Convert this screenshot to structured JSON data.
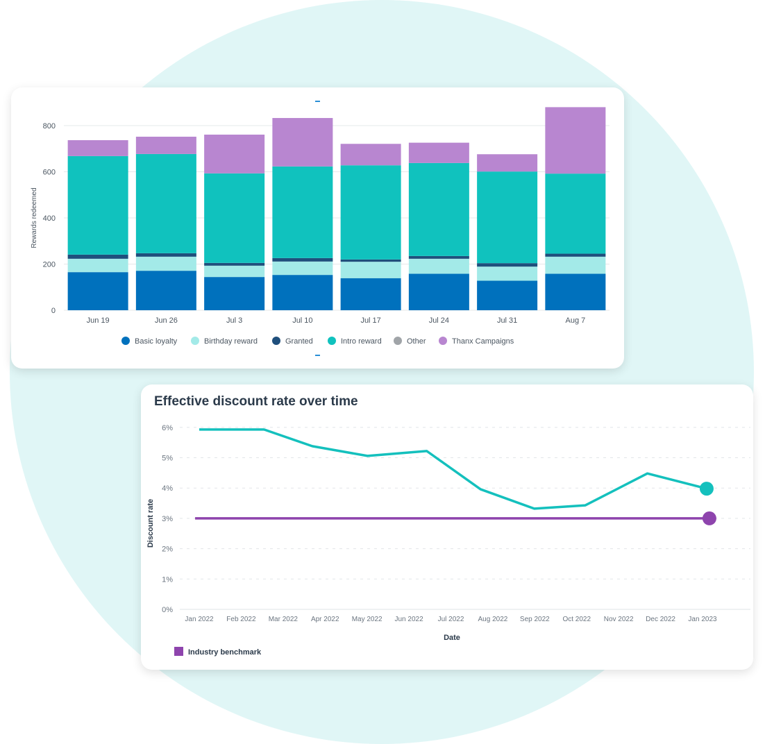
{
  "chart_data": [
    {
      "type": "bar",
      "stacked": true,
      "title": "",
      "xlabel": "",
      "ylabel": "Rewards redeemed",
      "ylim": [
        0,
        900
      ],
      "yticks": [
        0,
        200,
        400,
        600,
        800
      ],
      "grid": true,
      "legend_position": "bottom",
      "categories": [
        "Jun 19",
        "Jun 26",
        "Jul 3",
        "Jul 10",
        "Jul 17",
        "Jul 24",
        "Jul 31",
        "Aug 7"
      ],
      "series": [
        {
          "name": "Basic loyalty",
          "color": "#0071bd",
          "values": [
            165,
            171,
            144,
            153,
            139,
            158,
            128,
            158
          ]
        },
        {
          "name": "Birthday reward",
          "color": "#a3eae8",
          "values": [
            58,
            61,
            49,
            58,
            71,
            65,
            61,
            74
          ]
        },
        {
          "name": "Granted",
          "color": "#1f4f7c",
          "values": [
            18,
            15,
            12,
            15,
            10,
            12,
            15,
            13
          ]
        },
        {
          "name": "Intro reward",
          "color": "#10c2be",
          "values": [
            427,
            430,
            388,
            397,
            408,
            403,
            397,
            347
          ]
        },
        {
          "name": "Other",
          "color": "#a0a4a8",
          "values": [
            0,
            0,
            0,
            0,
            0,
            0,
            0,
            0
          ]
        },
        {
          "name": "Thanx Campaigns",
          "color": "#b886d0",
          "values": [
            69,
            75,
            168,
            210,
            93,
            88,
            75,
            288
          ]
        }
      ]
    },
    {
      "type": "line",
      "title": "Effective discount rate over time",
      "xlabel": "Date",
      "ylabel": "Discount rate",
      "ylim": [
        0,
        6
      ],
      "yticks": [
        "0%",
        "1%",
        "2%",
        "3%",
        "4%",
        "5%",
        "6%"
      ],
      "xticks": [
        "Jan 2022",
        "Feb 2022",
        "Mar 2022",
        "Apr 2022",
        "May 2022",
        "Jun 2022",
        "Jul 2022",
        "Aug 2022",
        "Sep 2022",
        "Oct 2022",
        "Nov 2022",
        "Dec 2022",
        "Jan 2023"
      ],
      "grid": true,
      "legend_position": "bottom-left",
      "series": [
        {
          "color": "#14c0bd",
          "x": [
            "2022-01-01",
            "2022-02-17",
            "2022-03-24",
            "2022-05-03",
            "2022-06-15",
            "2022-07-24",
            "2022-09-01",
            "2022-10-08",
            "2022-11-22",
            "2023-01-04"
          ],
          "y": [
            5.93,
            5.93,
            5.38,
            5.06,
            5.22,
            3.96,
            3.32,
            3.43,
            4.48,
            3.98
          ]
        },
        {
          "name": "Industry benchmark",
          "color": "#8e44ad",
          "x": [
            "2021-12-29",
            "2023-01-06"
          ],
          "y": [
            3,
            3
          ]
        }
      ]
    }
  ]
}
